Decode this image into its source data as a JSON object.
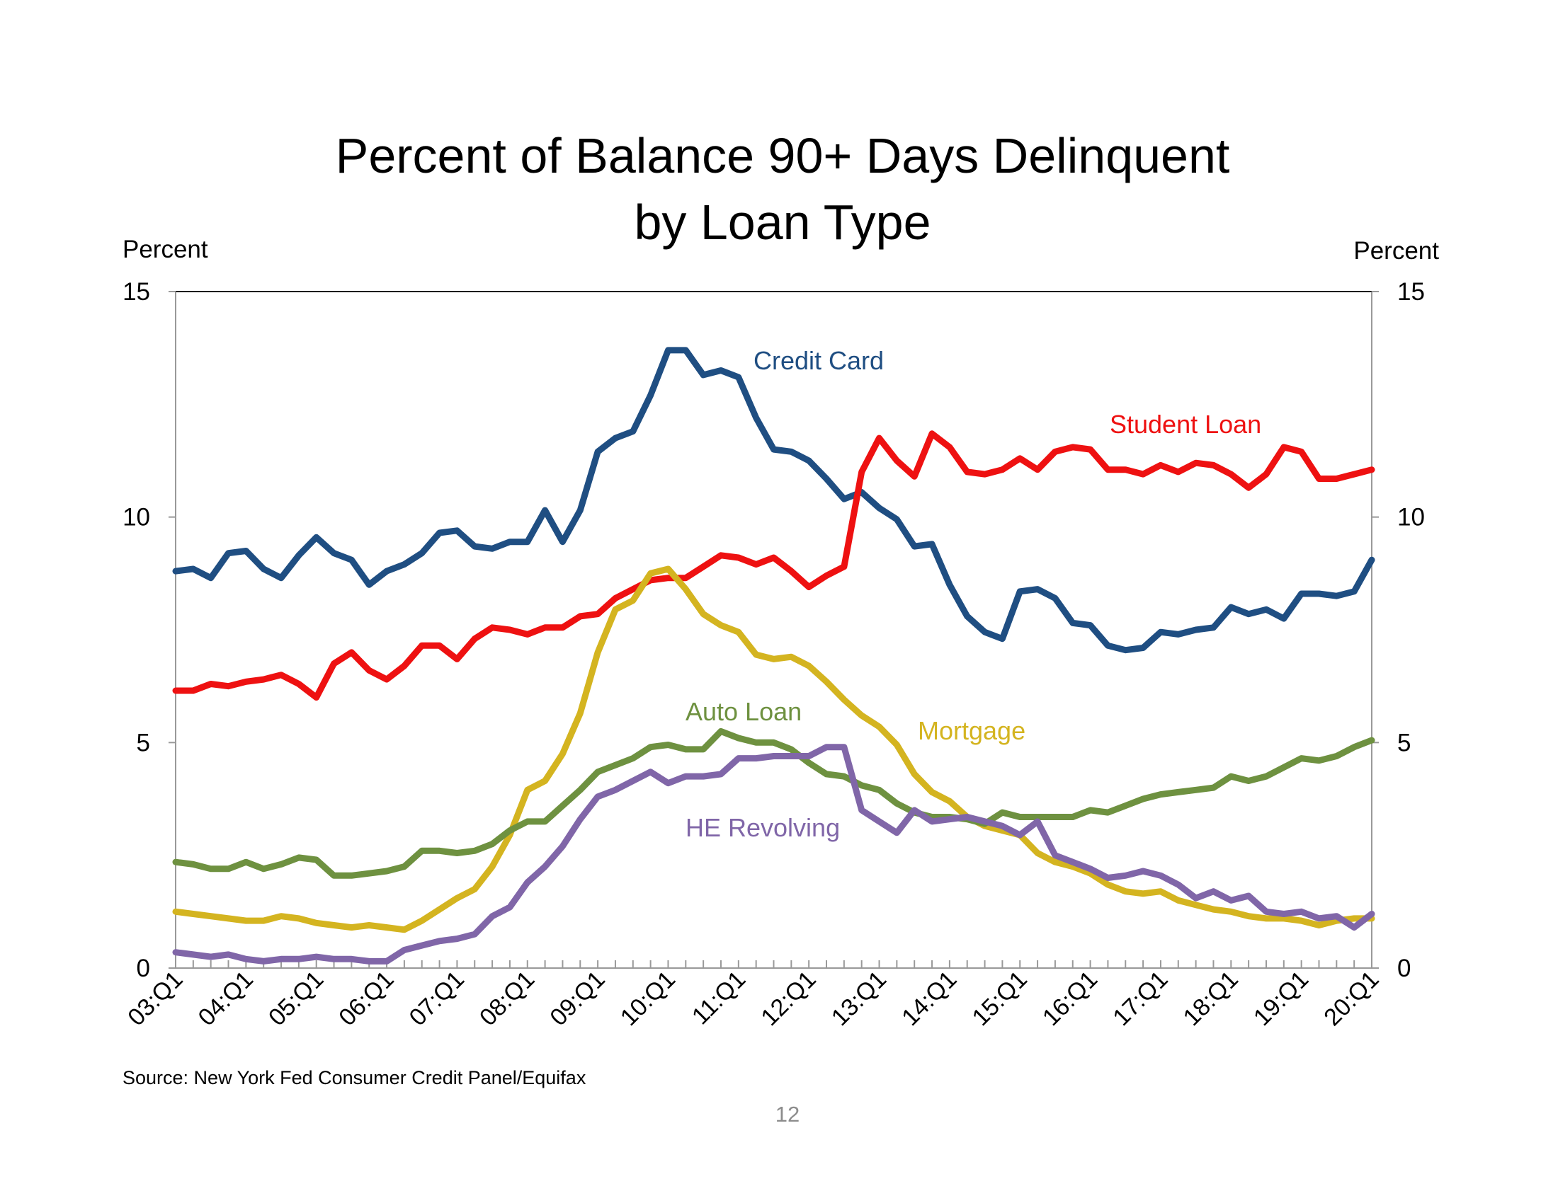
{
  "chart_data": {
    "type": "line",
    "title_lines": [
      "Percent of Balance 90+ Days Delinquent",
      "by Loan Type"
    ],
    "ylabel_left": "Percent",
    "ylabel_right": "Percent",
    "ylim": [
      0,
      15
    ],
    "yticks": [
      0,
      5,
      10,
      15
    ],
    "ytick_labels": [
      "0",
      "5",
      "10",
      "15"
    ],
    "x_start": "03:Q1",
    "x_count": 69,
    "x_tick_labels": [
      "03:Q1",
      "04:Q1",
      "05:Q1",
      "06:Q1",
      "07:Q1",
      "08:Q1",
      "09:Q1",
      "10:Q1",
      "11:Q1",
      "12:Q1",
      "13:Q1",
      "14:Q1",
      "15:Q1",
      "16:Q1",
      "17:Q1",
      "18:Q1",
      "19:Q1",
      "20:Q1"
    ],
    "series": [
      {
        "name": "Credit Card",
        "label": "Credit Card",
        "color": "#1f4e82",
        "values": [
          8.8,
          8.85,
          8.65,
          9.2,
          9.25,
          8.85,
          8.65,
          9.15,
          9.55,
          9.2,
          9.05,
          8.5,
          8.8,
          8.95,
          9.2,
          9.65,
          9.7,
          9.35,
          9.3,
          9.45,
          9.45,
          10.15,
          9.45,
          10.15,
          11.45,
          11.75,
          11.9,
          12.7,
          13.7,
          13.7,
          13.15,
          13.25,
          13.1,
          12.2,
          11.5,
          11.45,
          11.25,
          10.85,
          10.4,
          10.55,
          10.2,
          9.95,
          9.35,
          9.4,
          8.5,
          7.8,
          7.45,
          7.3,
          8.35,
          8.4,
          8.2,
          7.65,
          7.6,
          7.15,
          7.05,
          7.1,
          7.45,
          7.4,
          7.5,
          7.55,
          8.0,
          7.85,
          7.95,
          7.75,
          8.3,
          8.3,
          8.25,
          8.35,
          9.05
        ]
      },
      {
        "name": "Student Loan",
        "label": "Student Loan",
        "color": "#ee1111",
        "values": [
          6.15,
          6.15,
          6.3,
          6.25,
          6.35,
          6.4,
          6.5,
          6.3,
          6.0,
          6.75,
          7.0,
          6.6,
          6.4,
          6.7,
          7.15,
          7.15,
          6.85,
          7.3,
          7.55,
          7.5,
          7.4,
          7.55,
          7.55,
          7.8,
          7.85,
          8.2,
          8.4,
          8.6,
          8.65,
          8.65,
          8.9,
          9.15,
          9.1,
          8.95,
          9.1,
          8.8,
          8.45,
          8.7,
          8.9,
          11.0,
          11.75,
          11.25,
          10.9,
          11.85,
          11.55,
          11.0,
          10.95,
          11.05,
          11.3,
          11.05,
          11.45,
          11.55,
          11.5,
          11.05,
          11.05,
          10.95,
          11.15,
          11.0,
          11.2,
          11.15,
          10.95,
          10.65,
          10.95,
          11.55,
          11.45,
          10.85,
          10.85,
          10.95,
          11.05
        ]
      },
      {
        "name": "Mortgage",
        "label": "Mortgage",
        "color": "#d4b420",
        "values": [
          1.25,
          1.2,
          1.15,
          1.1,
          1.05,
          1.05,
          1.15,
          1.1,
          1.0,
          0.95,
          0.9,
          0.95,
          0.9,
          0.85,
          1.05,
          1.3,
          1.55,
          1.75,
          2.25,
          2.95,
          3.95,
          4.15,
          4.75,
          5.65,
          7.0,
          7.95,
          8.15,
          8.75,
          8.85,
          8.4,
          7.85,
          7.6,
          7.45,
          6.95,
          6.85,
          6.9,
          6.7,
          6.35,
          5.95,
          5.6,
          5.35,
          4.95,
          4.3,
          3.9,
          3.7,
          3.35,
          3.15,
          3.05,
          2.95,
          2.55,
          2.35,
          2.25,
          2.1,
          1.85,
          1.7,
          1.65,
          1.7,
          1.5,
          1.4,
          1.3,
          1.25,
          1.15,
          1.1,
          1.1,
          1.05,
          0.95,
          1.05,
          1.1,
          1.1
        ]
      },
      {
        "name": "Auto Loan",
        "label": "Auto Loan",
        "color": "#6e9140",
        "values": [
          2.35,
          2.3,
          2.2,
          2.2,
          2.35,
          2.2,
          2.3,
          2.45,
          2.4,
          2.05,
          2.05,
          2.1,
          2.15,
          2.25,
          2.6,
          2.6,
          2.55,
          2.6,
          2.75,
          3.05,
          3.25,
          3.25,
          3.6,
          3.95,
          4.35,
          4.5,
          4.65,
          4.9,
          4.95,
          4.85,
          4.85,
          5.25,
          5.1,
          5.0,
          5.0,
          4.85,
          4.55,
          4.3,
          4.25,
          4.05,
          3.95,
          3.65,
          3.45,
          3.35,
          3.35,
          3.3,
          3.2,
          3.45,
          3.35,
          3.35,
          3.35,
          3.35,
          3.5,
          3.45,
          3.6,
          3.75,
          3.85,
          3.9,
          3.95,
          4.0,
          4.25,
          4.15,
          4.25,
          4.45,
          4.65,
          4.6,
          4.7,
          4.9,
          5.05
        ]
      },
      {
        "name": "HE Revolving",
        "label": "HE Revolving",
        "color": "#8066a8",
        "values": [
          0.35,
          0.3,
          0.25,
          0.3,
          0.2,
          0.15,
          0.2,
          0.2,
          0.25,
          0.2,
          0.2,
          0.15,
          0.15,
          0.4,
          0.5,
          0.6,
          0.65,
          0.75,
          1.15,
          1.35,
          1.9,
          2.25,
          2.7,
          3.3,
          3.8,
          3.95,
          4.15,
          4.35,
          4.1,
          4.25,
          4.25,
          4.3,
          4.65,
          4.65,
          4.7,
          4.7,
          4.7,
          4.9,
          4.9,
          3.5,
          3.25,
          3.0,
          3.5,
          3.25,
          3.3,
          3.35,
          3.25,
          3.15,
          2.95,
          3.25,
          2.5,
          2.35,
          2.2,
          2.0,
          2.05,
          2.15,
          2.05,
          1.85,
          1.55,
          1.7,
          1.5,
          1.6,
          1.25,
          1.2,
          1.25,
          1.1,
          1.15,
          0.9,
          1.2
        ]
      }
    ],
    "source": "Source: New York Fed Consumer Credit Panel/Equifax",
    "page_number": "12"
  }
}
